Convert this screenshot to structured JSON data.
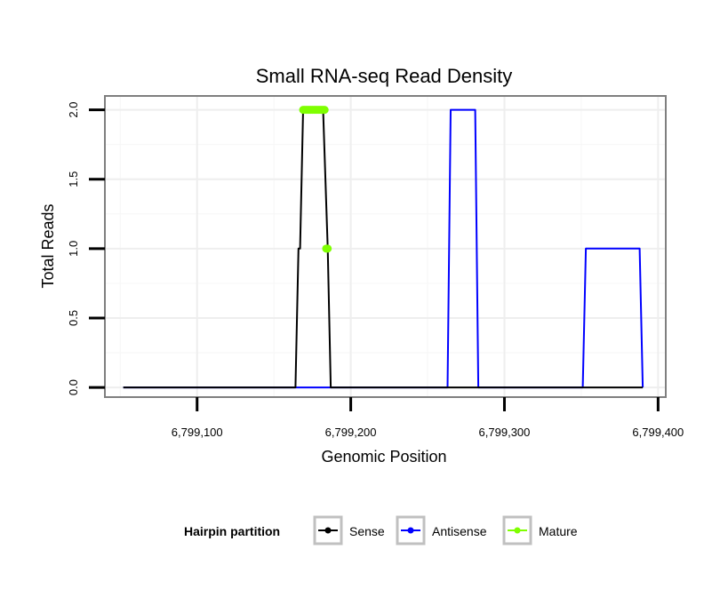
{
  "chart_data": {
    "type": "line",
    "title": "Small RNA-seq Read Density",
    "xlabel": "Genomic Position",
    "ylabel": "Total Reads",
    "xlim": [
      6799040,
      6799405
    ],
    "ylim": [
      -0.07,
      2.1
    ],
    "x_ticks": [
      6799100,
      6799200,
      6799300,
      6799400
    ],
    "x_tick_labels": [
      "6,799,100",
      "6,799,200",
      "6,799,300",
      "6,799,400"
    ],
    "y_ticks": [
      0,
      0.5,
      1,
      1.5,
      2
    ],
    "y_tick_labels": [
      "0.0",
      "0.5",
      "1.0",
      "1.5",
      "2.0"
    ],
    "legend": {
      "title": "Hairpin partition",
      "position": "bottom",
      "entries": [
        {
          "label": "Sense",
          "color": "#000000"
        },
        {
          "label": "Antisense",
          "color": "#0000ff"
        },
        {
          "label": "Mature",
          "color": "#7fff00"
        }
      ]
    },
    "series": [
      {
        "name": "Antisense",
        "color": "#0000ff",
        "style": "line",
        "x": [
          6799052,
          6799263,
          6799265,
          6799281,
          6799283,
          6799351,
          6799353,
          6799388,
          6799390
        ],
        "y": [
          0,
          0,
          2,
          2,
          0,
          0,
          1,
          1,
          0
        ]
      },
      {
        "name": "Sense",
        "color": "#000000",
        "style": "line",
        "x": [
          6799052,
          6799164,
          6799166,
          6799167,
          6799169,
          6799182,
          6799185,
          6799187,
          6799390
        ],
        "y": [
          0,
          0,
          1,
          1,
          2,
          2,
          1,
          0,
          0
        ]
      },
      {
        "name": "Mature",
        "color": "#7fff00",
        "style": "points",
        "x": [
          6799169,
          6799170,
          6799171,
          6799172,
          6799173,
          6799174,
          6799175,
          6799176,
          6799177,
          6799178,
          6799179,
          6799180,
          6799181,
          6799182,
          6799183,
          6799184,
          6799185
        ],
        "y": [
          2,
          2,
          2,
          2,
          2,
          2,
          2,
          2,
          2,
          2,
          2,
          2,
          2,
          2,
          2,
          1,
          1
        ]
      }
    ]
  }
}
